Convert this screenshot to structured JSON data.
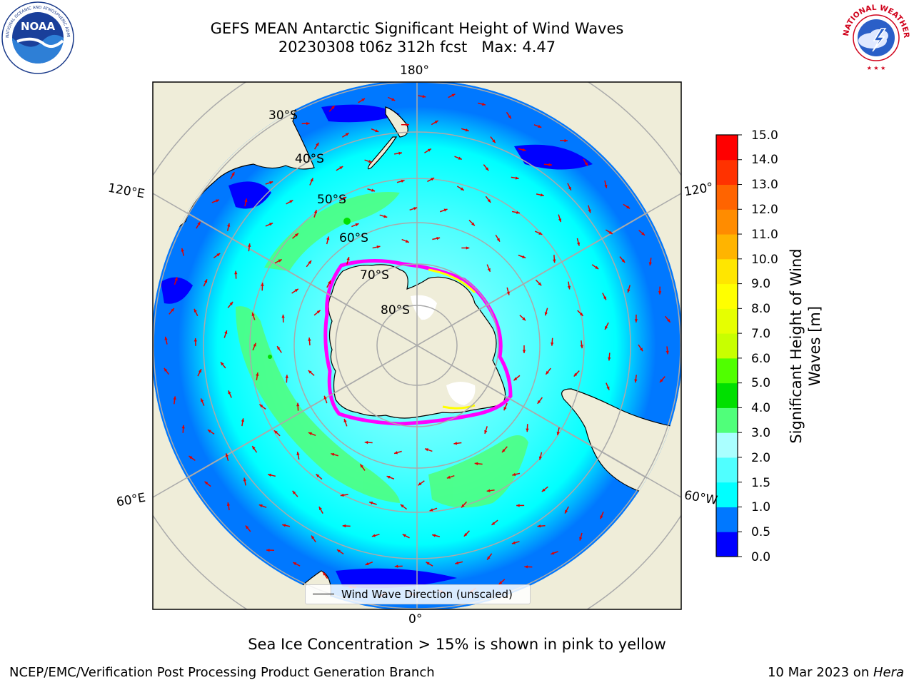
{
  "title": {
    "line1": "GEFS MEAN Antarctic Significant Height of Wind Waves",
    "line2": "20230308 t06z 312h fcst   Max: 4.47"
  },
  "logos": {
    "left": "noaa-logo",
    "right": "national-weather-service-logo",
    "left_text": "NOAA",
    "left_ring_text": "NATIONAL OCEANIC AND ATMOSPHERIC ADMINISTRATION",
    "right_ring_text": "NATIONAL WEATHER SERVICE"
  },
  "map": {
    "projection": "south-polar-stereographic",
    "longitude_labels": {
      "top": "180°",
      "bottom": "0°",
      "upper_left": "120°E",
      "upper_right": "120°",
      "lower_left": "60°E",
      "lower_right": "60°W"
    },
    "latitude_labels": [
      "30°S",
      "40°S",
      "50°S",
      "60°S",
      "70°S",
      "80°S"
    ],
    "arrow_color": "#e00000",
    "land_color": "#efedd9",
    "ice_edge_colors": [
      "#ff00ff",
      "#ff69b4",
      "#ffff00"
    ]
  },
  "legend": {
    "label": "Wind Wave Direction (unscaled)"
  },
  "colorbar": {
    "label": "Significant Height of Wind Waves [m]",
    "ticks": [
      "0.0",
      "0.5",
      "1.0",
      "1.5",
      "2.0",
      "3.0",
      "4.0",
      "5.0",
      "6.0",
      "7.0",
      "8.0",
      "9.0",
      "10.0",
      "11.0",
      "12.0",
      "13.0",
      "14.0",
      "15.0"
    ],
    "colors": [
      "#0000ff",
      "#0078ff",
      "#00ffff",
      "#50ffff",
      "#aaffff",
      "#50ff7a",
      "#00e000",
      "#50ff00",
      "#c8ff00",
      "#e6ff00",
      "#ffff00",
      "#ffe600",
      "#ffb400",
      "#ff8c00",
      "#ff6400",
      "#ff3200",
      "#ff0000"
    ]
  },
  "footer": {
    "note": "Sea Ice Concentration > 15% is shown in pink to yellow",
    "left": "NCEP/EMC/Verification Post Processing Product Generation Branch",
    "right_date": "10 Mar 2023 on ",
    "right_machine": "Hera"
  }
}
